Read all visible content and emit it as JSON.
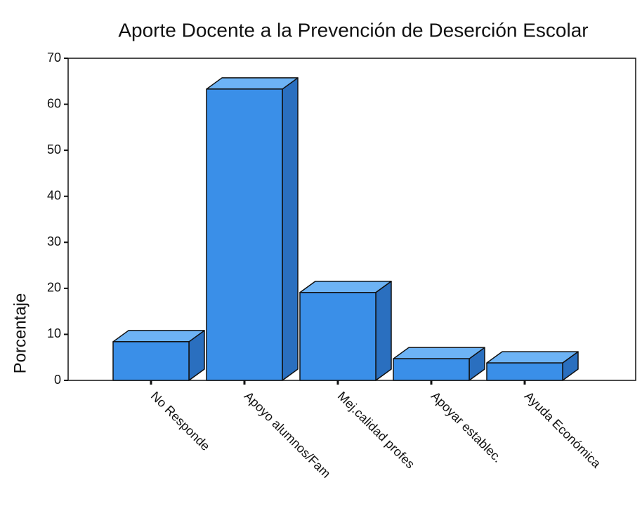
{
  "chart_data": {
    "type": "bar",
    "title": "Aporte Docente a la Prevención de Deserción Escolar",
    "y_label": "Porcentaje",
    "categories": [
      "No Responde",
      "Apoyo alumnos/Fam",
      "Mej.calidad profes",
      "Apoyar establec.",
      "Ayuda Económica"
    ],
    "values": [
      8.4,
      63.3,
      19.1,
      4.7,
      3.8
    ],
    "color": "#3a8fe8",
    "ylim": [
      0,
      70
    ],
    "yticks": [
      0,
      10,
      20,
      30,
      40,
      50,
      60,
      70
    ],
    "grid": false
  }
}
